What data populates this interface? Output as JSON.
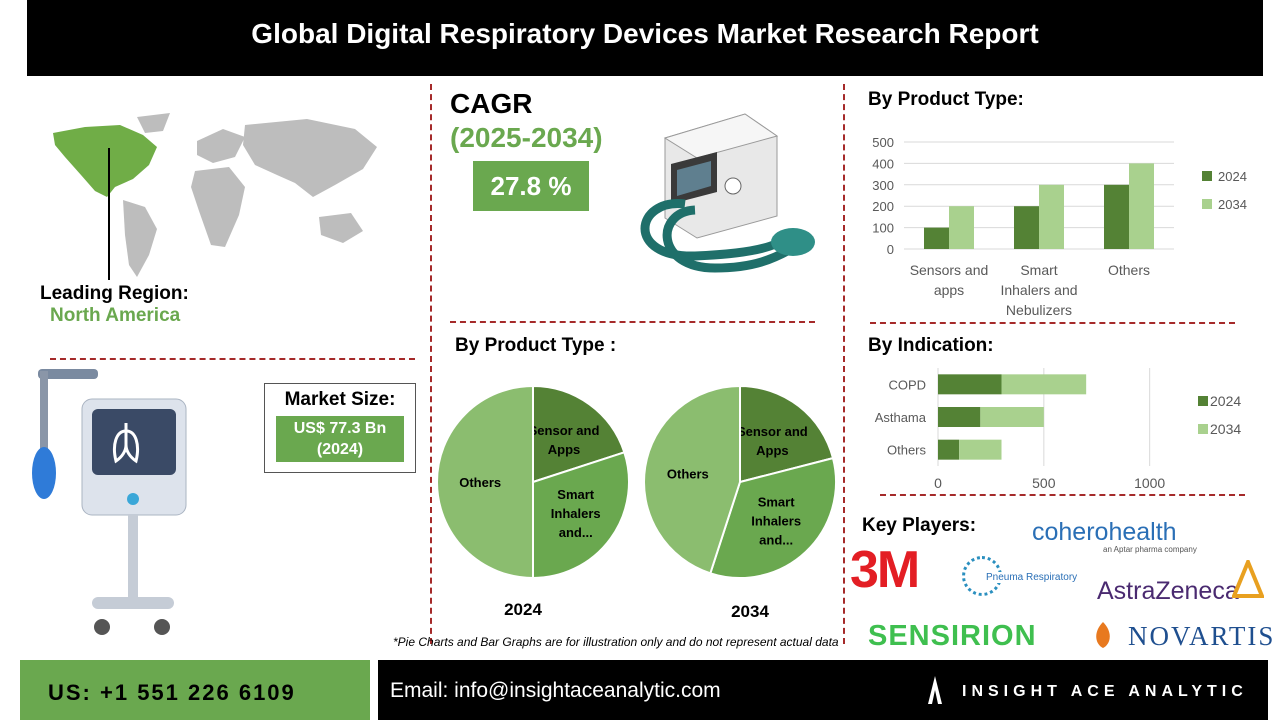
{
  "header": {
    "title": "Global Digital Respiratory Devices Market  Research Report"
  },
  "cagr": {
    "label": "CAGR",
    "period": "(2025-2034)",
    "value": "27.8 %"
  },
  "region": {
    "label": "Leading Region:",
    "value": "North America"
  },
  "market_size": {
    "label": "Market Size:",
    "value_line1": "US$ 77.3 Bn",
    "value_line2": "(2024)"
  },
  "pie_section": {
    "title": "By Product Type :"
  },
  "bar_section": {
    "title": "By Product Type:"
  },
  "hbar_section": {
    "title": "By Indication:"
  },
  "players": {
    "title": "Key Players:",
    "logos": [
      "3M",
      "coherohealth",
      "an Aptar pharma company",
      "Pneuma Respiratory",
      "AstraZeneca",
      "SENSIRION",
      "NOVARTIS"
    ]
  },
  "disclaimer": "*Pie Charts and Bar Graphs are for illustration only and do not represent actual data",
  "footer": {
    "phone": "US: +1 551 226 6109",
    "email": "Email: info@insightaceanalytic.com",
    "brand": "INSIGHT ACE ANALYTIC"
  },
  "colors": {
    "dark_green": "#548235",
    "mid_green": "#6aa84f",
    "light_green": "#a9d18e",
    "divider": "#a52a2a"
  },
  "chart_data": [
    {
      "type": "bar",
      "title": "By Product Type:",
      "categories": [
        "Sensors and apps",
        "Smart Inhalers and Nebulizers",
        "Others"
      ],
      "series": [
        {
          "name": "2024",
          "values": [
            100,
            200,
            300
          ],
          "color": "#548235"
        },
        {
          "name": "2034",
          "values": [
            200,
            300,
            400
          ],
          "color": "#a9d18e"
        }
      ],
      "ylim": [
        0,
        500
      ],
      "yticks": [
        0,
        100,
        200,
        300,
        400,
        500
      ],
      "legend": "right"
    },
    {
      "type": "bar",
      "orientation": "horizontal",
      "stacked": true,
      "title": "By Indication:",
      "categories": [
        "COPD",
        "Asthama",
        "Others"
      ],
      "series": [
        {
          "name": "2024",
          "values": [
            300,
            200,
            100
          ],
          "color": "#548235"
        },
        {
          "name": "2034",
          "values": [
            400,
            300,
            200
          ],
          "color": "#a9d18e"
        }
      ],
      "xlim": [
        0,
        1200
      ],
      "xticks": [
        0,
        500,
        1000
      ],
      "legend": "right"
    },
    {
      "type": "pie",
      "title": "2024",
      "slices": [
        {
          "label": "Sensor and Apps",
          "value": 20,
          "color": "#548235"
        },
        {
          "label": "Smart Inhalers and...",
          "value": 30,
          "color": "#6aa84f"
        },
        {
          "label": "Others",
          "value": 50,
          "color": "#8bbd6f"
        }
      ]
    },
    {
      "type": "pie",
      "title": "2034",
      "slices": [
        {
          "label": "Sensor and Apps",
          "value": 21,
          "color": "#548235"
        },
        {
          "label": "Smart Inhalers and...",
          "value": 34,
          "color": "#6aa84f"
        },
        {
          "label": "Others",
          "value": 45,
          "color": "#8bbd6f"
        }
      ]
    }
  ]
}
